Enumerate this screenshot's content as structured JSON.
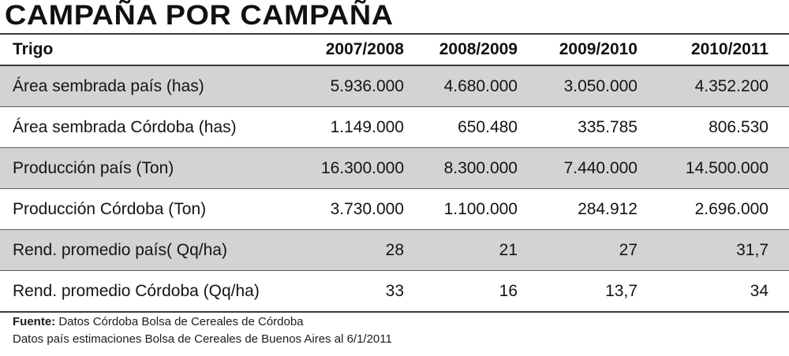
{
  "title": "CAMPAÑA POR CAMPAÑA",
  "table": {
    "headers": [
      "Trigo",
      "2007/2008",
      "2008/2009",
      "2009/2010",
      "2010/2011"
    ],
    "rows": [
      [
        "Área sembrada país (has)",
        "5.936.000",
        "4.680.000",
        "3.050.000",
        "4.352.200"
      ],
      [
        "Área sembrada Córdoba (has)",
        "1.149.000",
        "650.480",
        "335.785",
        "806.530"
      ],
      [
        "Producción país (Ton)",
        "16.300.000",
        "8.300.000",
        "7.440.000",
        "14.500.000"
      ],
      [
        "Producción Córdoba (Ton)",
        "3.730.000",
        "1.100.000",
        "284.912",
        "2.696.000"
      ],
      [
        "Rend. promedio país( Qq/ha)",
        "28",
        "21",
        "27",
        "31,7"
      ],
      [
        "Rend. promedio Córdoba (Qq/ha)",
        "33",
        "16",
        "13,7",
        "34"
      ]
    ]
  },
  "source": {
    "label": "Fuente:",
    "line1": " Datos Córdoba Bolsa de Cereales de Córdoba",
    "line2": "Datos país estimaciones Bolsa de Cereales de Buenos Aires al 6/1/2011"
  }
}
